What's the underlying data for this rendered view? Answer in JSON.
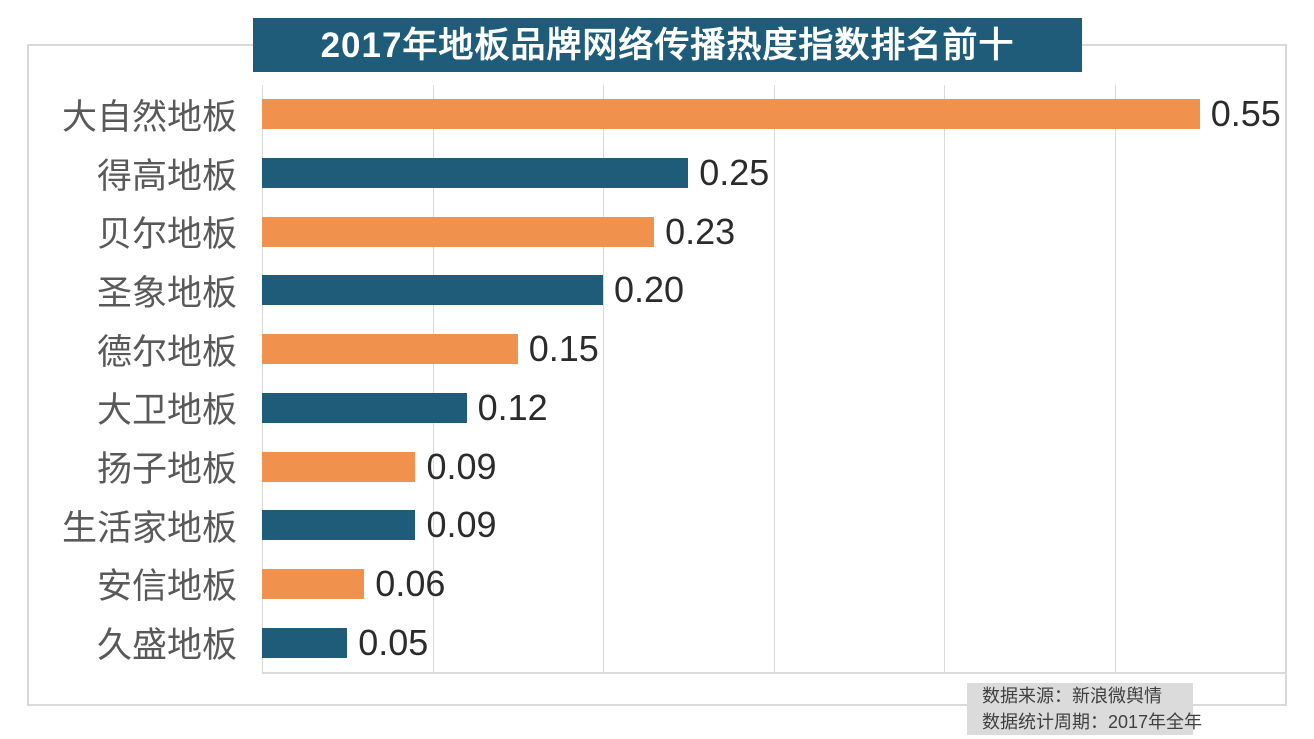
{
  "title": "2017年地板品牌网络传播热度指数排名前十",
  "footer": {
    "line1": "数据来源：新浪微舆情",
    "line2": "数据统计周期：2017年全年"
  },
  "colors": {
    "background": "#FFFFFF",
    "orange": "#F0924E",
    "blue": "#1F5C7A",
    "title_bg": "#1F5C7A",
    "title_text": "#FFFFFF",
    "grid": "#D9D9D9",
    "frame": "#D9D9D9",
    "category_label": "#595959",
    "value_label": "#2B2B2B",
    "footer_bg": "#DBDBDB",
    "footer_text": "#404040"
  },
  "chart_data": {
    "type": "bar",
    "orientation": "horizontal",
    "title": "2017年地板品牌网络传播热度指数排名前十",
    "categories": [
      "大自然地板",
      "得高地板",
      "贝尔地板",
      "圣象地板",
      "德尔地板",
      "大卫地板",
      "扬子地板",
      "生活家地板",
      "安信地板",
      "久盛地板"
    ],
    "values": [
      0.55,
      0.25,
      0.23,
      0.2,
      0.15,
      0.12,
      0.09,
      0.09,
      0.06,
      0.05
    ],
    "value_labels": [
      "0.55",
      "0.25",
      "0.23",
      "0.20",
      "0.15",
      "0.12",
      "0.09",
      "0.09",
      "0.06",
      "0.05"
    ],
    "bar_colors": [
      "orange",
      "blue",
      "orange",
      "blue",
      "orange",
      "blue",
      "orange",
      "blue",
      "orange",
      "blue"
    ],
    "xlabel": "",
    "ylabel": "",
    "xlim": [
      0,
      0.6
    ],
    "gridline_step": 0.1,
    "grid": true,
    "legend": false,
    "data_labels": true,
    "source_note": [
      "数据来源：新浪微舆情",
      "数据统计周期：2017年全年"
    ]
  }
}
